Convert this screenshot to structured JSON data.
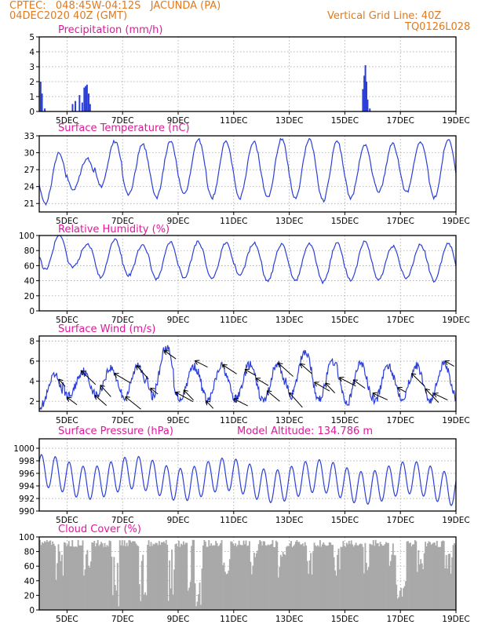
{
  "header": {
    "line1": "CPTEC:   048:45W-04:12S   JACUNDA (PA)",
    "line2": "04DEC2020 40Z (GMT)",
    "grid_note": "Vertical Grid Line: 40Z",
    "code": "TQ0126L028"
  },
  "colors": {
    "header": "#e07a1e",
    "title": "#e0189a",
    "series": "#2b3fd8",
    "cloud": "#a9a9a9",
    "grid": "#9a9a9a"
  },
  "x_axis": {
    "tick_labels": [
      "5DEC",
      "7DEC",
      "9DEC",
      "11DEC",
      "13DEC",
      "15DEC",
      "17DEC",
      "19DEC"
    ]
  },
  "chart_data": [
    {
      "id": "precip",
      "type": "bar",
      "title": "Precipitation (mm/h)",
      "ylim": [
        0,
        5
      ],
      "yticks": [
        0,
        1,
        2,
        3,
        4,
        5
      ],
      "grid": true,
      "x_unit": "days since 04DEC2020 00Z",
      "xlim": [
        4,
        19
      ],
      "points": [
        [
          4.05,
          2.0
        ],
        [
          4.1,
          1.2
        ],
        [
          4.2,
          0.2
        ],
        [
          5.2,
          0.5
        ],
        [
          5.3,
          0.7
        ],
        [
          5.45,
          1.1
        ],
        [
          5.55,
          0.6
        ],
        [
          5.62,
          1.6
        ],
        [
          5.67,
          1.7
        ],
        [
          5.72,
          1.8
        ],
        [
          5.78,
          1.2
        ],
        [
          5.83,
          0.5
        ],
        [
          15.65,
          1.5
        ],
        [
          15.7,
          2.4
        ],
        [
          15.74,
          3.1
        ],
        [
          15.78,
          2.0
        ],
        [
          15.82,
          0.8
        ],
        [
          15.9,
          0.2
        ]
      ]
    },
    {
      "id": "temp",
      "type": "line",
      "title": "Surface Temperature (nC)",
      "ylim": [
        19.5,
        33
      ],
      "yticks": [
        21,
        24,
        27,
        30,
        33
      ],
      "grid": true,
      "xlim": [
        4,
        19
      ],
      "daily_max": [
        30,
        29,
        32,
        31.5,
        32,
        32.5,
        32,
        32,
        32.5,
        32.5,
        32,
        31.5,
        31.5,
        32,
        32.5
      ],
      "daily_min": [
        21,
        23.5,
        24,
        22.5,
        22,
        22.5,
        22,
        22,
        22,
        22,
        21.5,
        22,
        23,
        23,
        22
      ]
    },
    {
      "id": "rh",
      "type": "line",
      "title": "Relative Humidity (%)",
      "ylim": [
        0,
        100
      ],
      "yticks": [
        0,
        20,
        40,
        60,
        80,
        100
      ],
      "grid": true,
      "xlim": [
        4,
        19
      ],
      "daily_max": [
        100,
        88,
        95,
        88,
        91,
        92,
        90,
        90,
        88,
        90,
        90,
        92,
        86,
        88,
        90
      ],
      "daily_min": [
        55,
        58,
        45,
        47,
        42,
        44,
        42,
        48,
        40,
        40,
        38,
        40,
        42,
        43,
        40
      ]
    },
    {
      "id": "wind",
      "type": "line",
      "title": "Surface Wind (m/s)",
      "ylim": [
        1,
        8.5
      ],
      "yticks": [
        2,
        4,
        6,
        8
      ],
      "grid": true,
      "xlim": [
        4,
        19
      ],
      "daily_max": [
        4.5,
        5,
        5.3,
        5.6,
        7.4,
        5.5,
        5.5,
        5.6,
        5.7,
        7.0,
        6.0,
        5.8,
        5.6,
        5.5,
        5.8
      ],
      "daily_min": [
        1.6,
        2.5,
        2.6,
        2.4,
        2.5,
        2.3,
        2.1,
        2.2,
        2.0,
        2.6,
        2.3,
        1.8,
        2.0,
        2.4,
        2.1
      ],
      "vectors": [
        4.7,
        5.0,
        5.5,
        6.0,
        6.2,
        6.7,
        7.1,
        7.5,
        8.0,
        8.5,
        8.9,
        9.2,
        9.6,
        10.0,
        10.6,
        11.0,
        11.4,
        11.8,
        12.2,
        12.6,
        13.0,
        13.4,
        13.9,
        14.3,
        14.8,
        15.3,
        16.0,
        16.9,
        17.4,
        17.9,
        18.2,
        18.6
      ]
    },
    {
      "id": "press",
      "type": "line",
      "title": "Surface Pressure (hPa)",
      "ylim": [
        990,
        1001.5
      ],
      "yticks": [
        990,
        992,
        994,
        996,
        998,
        1000
      ],
      "grid": true,
      "xlim": [
        4,
        19
      ],
      "annotation": "Model Altitude: 134.786 m"
    },
    {
      "id": "cloud",
      "type": "area",
      "title": "Cloud Cover (%)",
      "ylim": [
        0,
        100
      ],
      "yticks": [
        0,
        20,
        40,
        60,
        80,
        100
      ],
      "grid": true,
      "xlim": [
        4,
        19
      ]
    }
  ]
}
